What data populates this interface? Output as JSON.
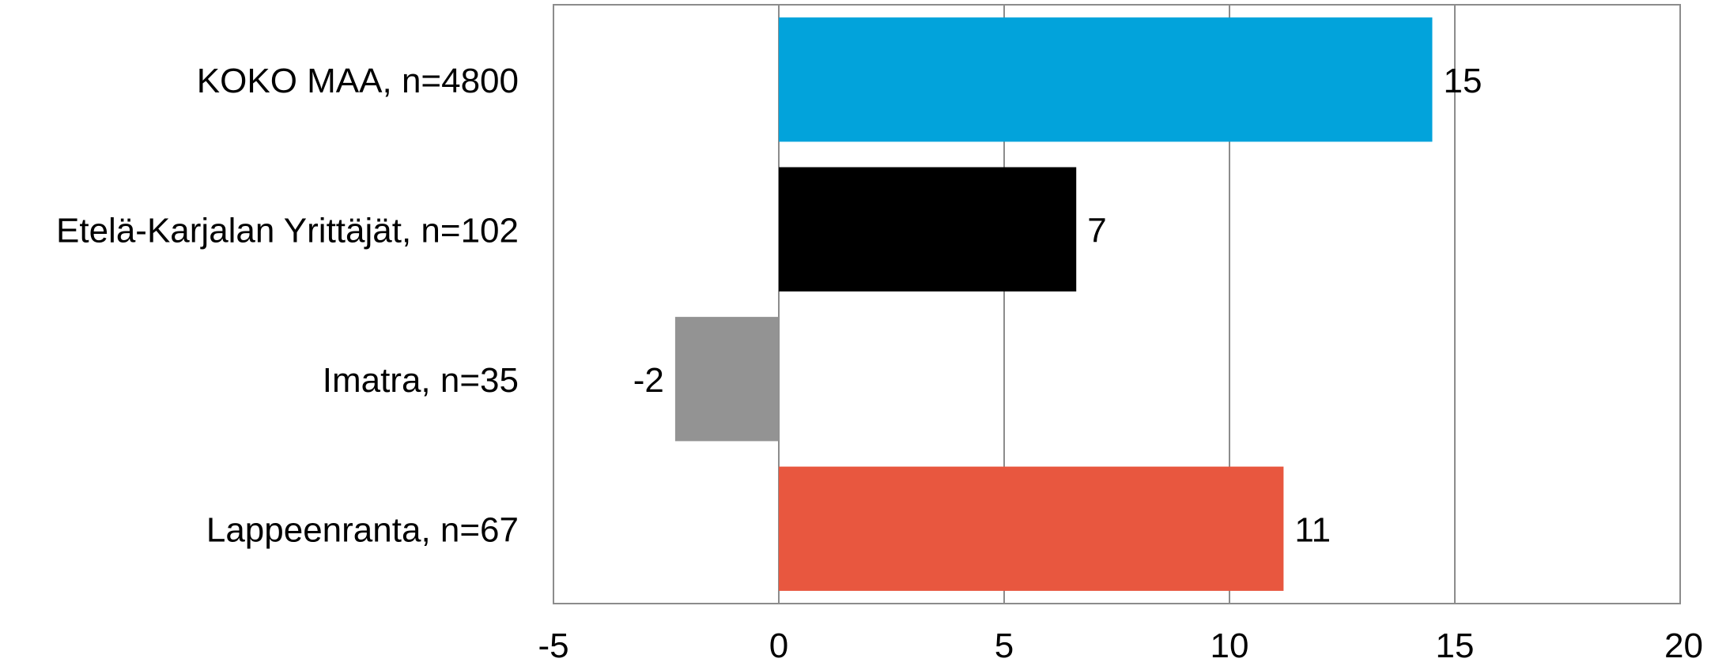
{
  "chart_data": {
    "type": "bar",
    "orientation": "horizontal",
    "categories": [
      "KOKO MAA, n=4800",
      "Etelä-Karjalan Yrittäjät, n=102",
      "Imatra, n=35",
      "Lappeenranta, n=67"
    ],
    "values": [
      14.5,
      6.6,
      -2.3,
      11.2
    ],
    "data_labels": [
      "15",
      "7",
      "-2",
      "11"
    ],
    "bar_colors": [
      "#02a3db",
      "#000000",
      "#939393",
      "#e8573f"
    ],
    "xlim": [
      -5,
      20
    ],
    "xticks": [
      -5,
      0,
      5,
      10,
      15,
      20
    ],
    "tick_labels": [
      "-5",
      "0",
      "5",
      "10",
      "15",
      "20"
    ],
    "grid": "vertical",
    "gridline_color": "#8c8c8c",
    "title": "",
    "xlabel": "",
    "ylabel": ""
  }
}
